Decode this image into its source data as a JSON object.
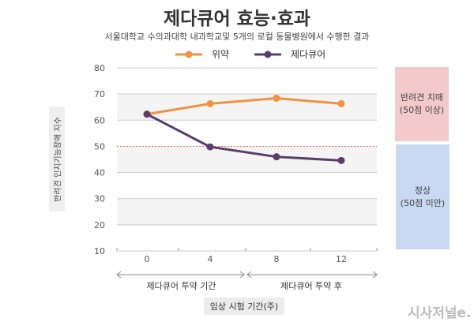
{
  "chart_data": {
    "type": "line",
    "title": "제다큐어 효능·효과",
    "subtitle": "서울대학교 수의과대학 내과학교및 5개의 로컬 동물병원에서 수행한 결과",
    "x": [
      0,
      4,
      8,
      12
    ],
    "series": [
      {
        "name": "위약",
        "color": "#f0923f",
        "values": [
          62.3,
          66.3,
          68.4,
          66.3
        ]
      },
      {
        "name": "제다큐어",
        "color": "#5a3d6b",
        "values": [
          62.3,
          49.8,
          46.0,
          44.6
        ]
      }
    ],
    "ylabel": "반려견 인지기능장애 지수",
    "xlabel": "임상 시험 기간(주)",
    "ylim": [
      10,
      80
    ],
    "yticks": [
      10,
      20,
      30,
      40,
      50,
      60,
      70,
      80
    ],
    "threshold": 50,
    "threshold_color": "#e05a5a",
    "periods": [
      "제다큐어 투약 기간",
      "제다큐어 투약 후"
    ],
    "zones": [
      {
        "label1": "반려견 치매",
        "label2": "(50점 이상)",
        "color": "#f4c9cb"
      },
      {
        "label1": "정상",
        "label2": "(50점 미만)",
        "color": "#c9d9f1"
      }
    ],
    "grid": true
  },
  "watermark": "시사저널e."
}
